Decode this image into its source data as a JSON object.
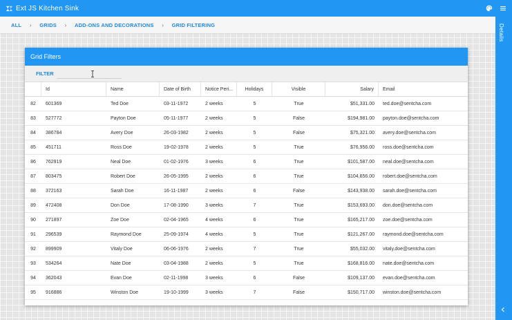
{
  "app": {
    "title": "Ext JS Kitchen Sink",
    "icons": [
      "palette-icon",
      "menu-icon"
    ]
  },
  "breadcrumb": [
    "ALL",
    "GRIDS",
    "ADD-ONS AND DECORATIONS",
    "GRID FILTERING"
  ],
  "details_panel": {
    "label": "Details"
  },
  "panel": {
    "title": "Grid Filters",
    "filter_label": "FILTER",
    "filter_value": ""
  },
  "grid": {
    "columns": [
      "",
      "Id",
      "Name",
      "Date of Birth",
      "Notice Peri...",
      "Holidays",
      "Visible",
      "Salary",
      "Email"
    ],
    "rows": [
      [
        "82",
        "601369",
        "Ted Doe",
        "03-11-1972",
        "2 weeks",
        "5",
        "True",
        "$51,331.00",
        "ted.doe@sentcha.com"
      ],
      [
        "83",
        "527772",
        "Payton Doe",
        "05-11-1977",
        "2 weeks",
        "5",
        "False",
        "$194,981.00",
        "payton.doe@sentcha.com"
      ],
      [
        "84",
        "386784",
        "Avery Doe",
        "26-03-1982",
        "2 weeks",
        "5",
        "False",
        "$75,321.00",
        "avery.doe@sentcha.com"
      ],
      [
        "85",
        "451711",
        "Ross Doe",
        "19-02-1978",
        "2 weeks",
        "5",
        "True",
        "$76,956.00",
        "ross.doe@sentcha.com"
      ],
      [
        "86",
        "762919",
        "Neal Doe",
        "01-02-1976",
        "3 weeks",
        "6",
        "True",
        "$101,587.00",
        "neal.doe@sentcha.com"
      ],
      [
        "87",
        "803475",
        "Robert Doe",
        "26-05-1995",
        "2 weeks",
        "6",
        "True",
        "$104,656.00",
        "robert.doe@sentcha.com"
      ],
      [
        "88",
        "372163",
        "Sarah Doe",
        "16-11-1987",
        "2 weeks",
        "6",
        "False",
        "$143,938.00",
        "sarah.doe@sentcha.com"
      ],
      [
        "89",
        "472408",
        "Don Doe",
        "17-08-1990",
        "3 weeks",
        "7",
        "True",
        "$153,693.00",
        "don.doe@sentcha.com"
      ],
      [
        "90",
        "271897",
        "Zoe Doe",
        "02-04-1965",
        "4 weeks",
        "6",
        "True",
        "$165,217.00",
        "zoe.doe@sentcha.com"
      ],
      [
        "91",
        "296539",
        "Raymond Doe",
        "25-09-1974",
        "4 weeks",
        "5",
        "True",
        "$121,267.00",
        "raymond.doe@sentcha.com"
      ],
      [
        "92",
        "899909",
        "Vitaly Doe",
        "06-06-1976",
        "2 weeks",
        "7",
        "True",
        "$55,032.00",
        "vitaly.doe@sentcha.com"
      ],
      [
        "93",
        "534264",
        "Nate Doe",
        "03-04-1988",
        "2 weeks",
        "5",
        "True",
        "$168,816.00",
        "nate.doe@sentcha.com"
      ],
      [
        "94",
        "362043",
        "Evan Doe",
        "02-11-1998",
        "3 weeks",
        "6",
        "False",
        "$109,137.00",
        "evan.doe@sentcha.com"
      ],
      [
        "95",
        "916886",
        "Winston Doe",
        "19-10-1999",
        "3 weeks",
        "7",
        "False",
        "$150,717.00",
        "winston.doe@sentcha.com"
      ]
    ]
  }
}
